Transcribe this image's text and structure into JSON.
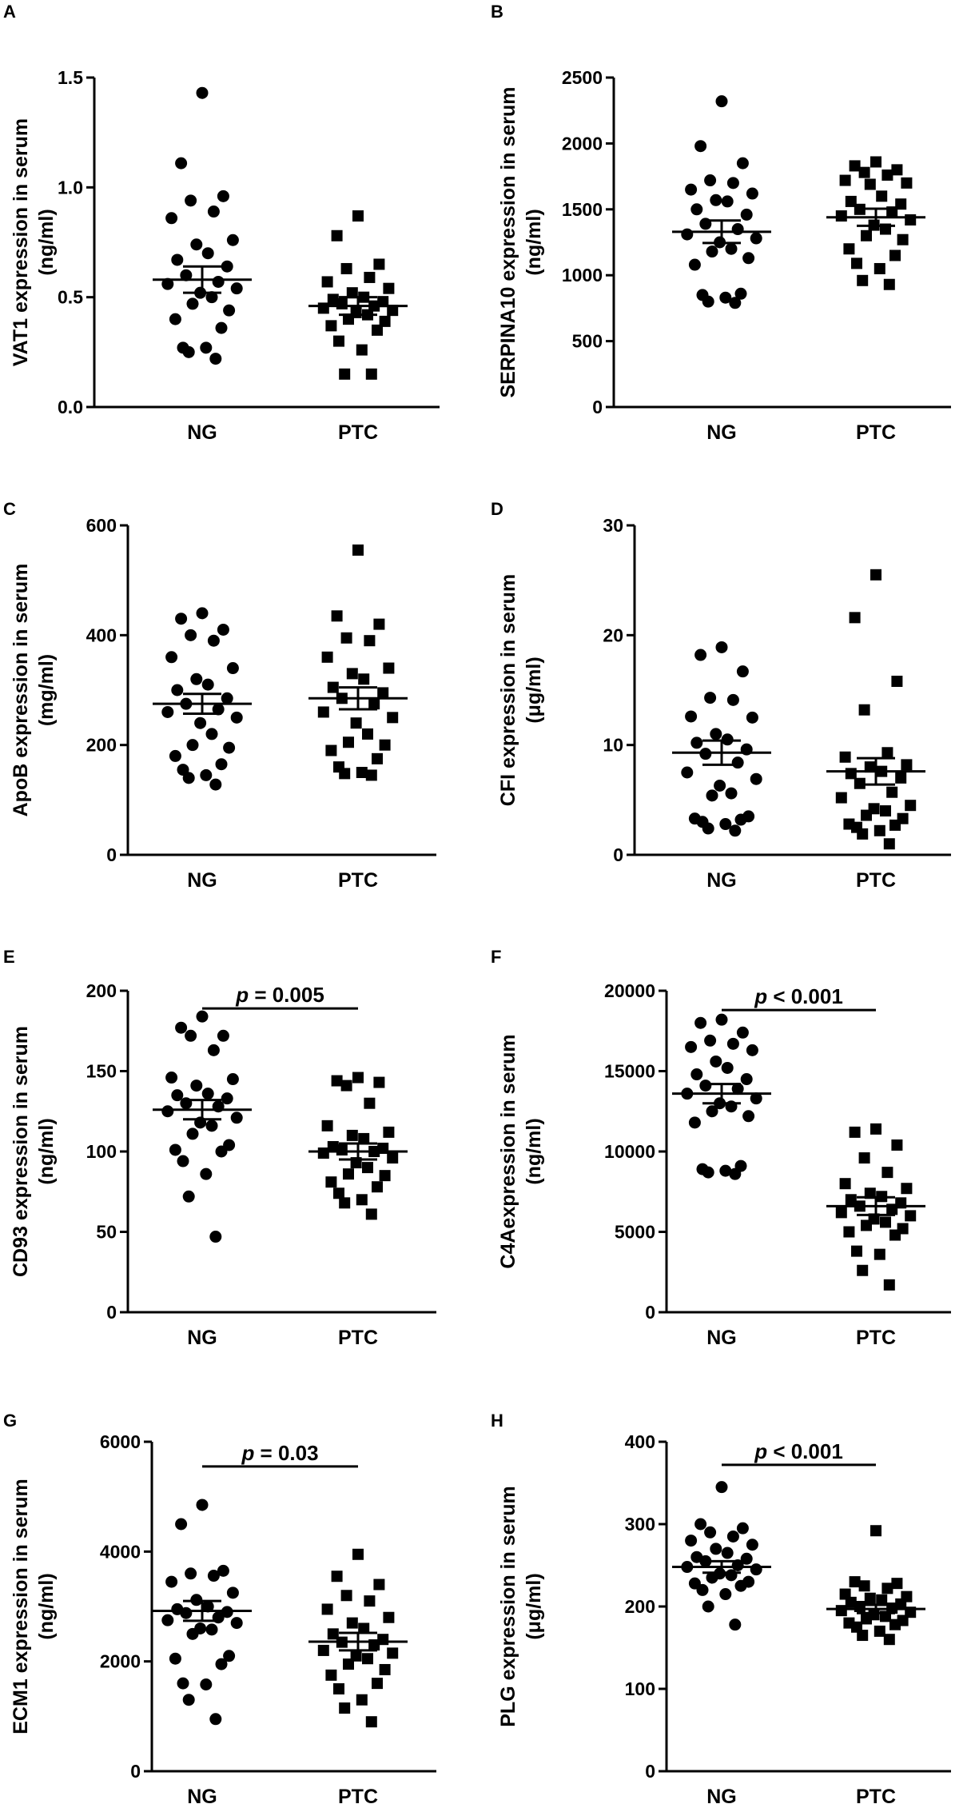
{
  "figure": {
    "colors": {
      "ink": "#000000",
      "background": "#ffffff"
    }
  },
  "chart_data": [
    {
      "panel": "A",
      "type": "scatter",
      "title": "",
      "ylabel_lines": [
        "VAT1 expression in serum",
        "(ng/ml)"
      ],
      "categories": [
        "NG",
        "PTC"
      ],
      "yticks": [
        0,
        0.5,
        1,
        1.5
      ],
      "ytick_labels": [
        "0.0",
        "0.5",
        "1.0",
        "1.5"
      ],
      "ylim": [
        0,
        1.5
      ],
      "series": [
        {
          "name": "NG",
          "marker": "circle",
          "mean": 0.58,
          "sem": 0.06,
          "values": [
            1.43,
            1.11,
            0.96,
            0.94,
            0.89,
            0.86,
            0.76,
            0.74,
            0.7,
            0.67,
            0.64,
            0.6,
            0.57,
            0.56,
            0.54,
            0.52,
            0.5,
            0.47,
            0.44,
            0.4,
            0.36,
            0.27,
            0.27,
            0.25,
            0.22
          ]
        },
        {
          "name": "PTC",
          "marker": "square",
          "mean": 0.46,
          "sem": 0.04,
          "values": [
            0.87,
            0.78,
            0.65,
            0.63,
            0.59,
            0.57,
            0.54,
            0.52,
            0.5,
            0.49,
            0.48,
            0.47,
            0.46,
            0.45,
            0.44,
            0.43,
            0.42,
            0.4,
            0.39,
            0.37,
            0.35,
            0.3,
            0.26,
            0.15,
            0.15
          ]
        }
      ]
    },
    {
      "panel": "B",
      "type": "scatter",
      "title": "",
      "ylabel_lines": [
        "SERPINA10 expression in serum",
        "(ng/ml)"
      ],
      "categories": [
        "NG",
        "PTC"
      ],
      "yticks": [
        0,
        500,
        1000,
        1500,
        2000,
        2500
      ],
      "ytick_labels": [
        "0",
        "500",
        "1000",
        "1500",
        "2000",
        "2500"
      ],
      "ylim": [
        0,
        2500
      ],
      "series": [
        {
          "name": "NG",
          "marker": "circle",
          "mean": 1330,
          "sem": 85,
          "values": [
            2320,
            1980,
            1850,
            1720,
            1700,
            1650,
            1620,
            1570,
            1560,
            1500,
            1460,
            1390,
            1350,
            1310,
            1280,
            1250,
            1200,
            1180,
            1130,
            1080,
            860,
            850,
            830,
            800,
            790
          ]
        },
        {
          "name": "PTC",
          "marker": "square",
          "mean": 1440,
          "sem": 65,
          "values": [
            1860,
            1830,
            1800,
            1780,
            1760,
            1720,
            1700,
            1690,
            1600,
            1560,
            1540,
            1500,
            1480,
            1450,
            1420,
            1380,
            1350,
            1300,
            1270,
            1200,
            1150,
            1090,
            1050,
            960,
            930
          ]
        }
      ]
    },
    {
      "panel": "C",
      "type": "scatter",
      "title": "",
      "ylabel_lines": [
        "ApoB expression in serum",
        "(mg/ml)"
      ],
      "categories": [
        "NG",
        "PTC"
      ],
      "yticks": [
        0,
        200,
        400,
        600
      ],
      "ytick_labels": [
        "0",
        "200",
        "400",
        "600"
      ],
      "ylim": [
        0,
        600
      ],
      "series": [
        {
          "name": "NG",
          "marker": "circle",
          "mean": 275,
          "sem": 18,
          "values": [
            440,
            430,
            410,
            400,
            390,
            360,
            340,
            320,
            310,
            300,
            285,
            275,
            265,
            260,
            250,
            240,
            220,
            200,
            195,
            180,
            165,
            155,
            145,
            140,
            128
          ]
        },
        {
          "name": "PTC",
          "marker": "square",
          "mean": 285,
          "sem": 20,
          "values": [
            555,
            435,
            420,
            395,
            390,
            360,
            340,
            330,
            320,
            305,
            295,
            285,
            275,
            260,
            250,
            240,
            220,
            205,
            200,
            190,
            175,
            160,
            150,
            148,
            145
          ]
        }
      ]
    },
    {
      "panel": "D",
      "type": "scatter",
      "title": "",
      "ylabel_lines": [
        "CFI expression in serum",
        "(μg/ml)"
      ],
      "categories": [
        "NG",
        "PTC"
      ],
      "yticks": [
        0,
        10,
        20,
        30
      ],
      "ytick_labels": [
        "0",
        "10",
        "20",
        "30"
      ],
      "ylim": [
        0,
        30
      ],
      "series": [
        {
          "name": "NG",
          "marker": "circle",
          "mean": 9.3,
          "sem": 1.1,
          "values": [
            18.9,
            18.2,
            16.7,
            14.3,
            14.1,
            12.6,
            12.5,
            11.0,
            10.5,
            10.2,
            9.6,
            9.2,
            8.4,
            7.5,
            6.9,
            6.3,
            5.6,
            5.4,
            3.5,
            3.3,
            3.2,
            3.0,
            2.8,
            2.4,
            2.2
          ]
        },
        {
          "name": "PTC",
          "marker": "square",
          "mean": 7.6,
          "sem": 1.2,
          "values": [
            25.5,
            21.6,
            15.8,
            13.2,
            9.3,
            8.9,
            8.2,
            8.0,
            7.6,
            7.4,
            7.0,
            6.5,
            5.7,
            5.2,
            4.5,
            4.2,
            4.0,
            3.6,
            3.3,
            2.8,
            2.7,
            2.5,
            2.2,
            1.9,
            1.0
          ]
        }
      ]
    },
    {
      "panel": "E",
      "type": "scatter",
      "title": "",
      "ylabel_lines": [
        "CD93 expression in serum",
        "(ng/ml)"
      ],
      "categories": [
        "NG",
        "PTC"
      ],
      "yticks": [
        0,
        50,
        100,
        150,
        200
      ],
      "ytick_labels": [
        "0",
        "50",
        "100",
        "150",
        "200"
      ],
      "ylim": [
        0,
        200
      ],
      "significance": {
        "label": "= 0.005",
        "p_symbol": "p",
        "bar_y": 189
      },
      "series": [
        {
          "name": "NG",
          "marker": "circle",
          "mean": 126,
          "sem": 6,
          "values": [
            184,
            177,
            172,
            172,
            163,
            146,
            145,
            141,
            136,
            135,
            133,
            130,
            128,
            125,
            121,
            118,
            116,
            111,
            104,
            101,
            100,
            94,
            86,
            72,
            47
          ]
        },
        {
          "name": "PTC",
          "marker": "square",
          "mean": 100,
          "sem": 5,
          "values": [
            146,
            144,
            143,
            141,
            130,
            116,
            112,
            110,
            108,
            103,
            102,
            101,
            100,
            99,
            96,
            93,
            90,
            86,
            85,
            81,
            78,
            74,
            70,
            68,
            61
          ]
        }
      ]
    },
    {
      "panel": "F",
      "type": "scatter",
      "title": "",
      "ylabel_lines": [
        "C4Aexpression in serum",
        "(ng/ml)"
      ],
      "categories": [
        "NG",
        "PTC"
      ],
      "yticks": [
        0,
        5000,
        10000,
        15000,
        20000
      ],
      "ytick_labels": [
        "0",
        "5000",
        "10000",
        "15000",
        "20000"
      ],
      "ylim": [
        0,
        20000
      ],
      "significance": {
        "label": "< 0.001",
        "p_symbol": "p",
        "bar_y": 18800
      },
      "series": [
        {
          "name": "NG",
          "marker": "circle",
          "mean": 13600,
          "sem": 600,
          "values": [
            18200,
            18000,
            17400,
            16900,
            16700,
            16500,
            16300,
            15600,
            15200,
            14800,
            14500,
            14100,
            13900,
            13600,
            13300,
            13000,
            12800,
            12500,
            12200,
            11800,
            9100,
            8900,
            8800,
            8700,
            8600
          ]
        },
        {
          "name": "PTC",
          "marker": "square",
          "mean": 6600,
          "sem": 550,
          "values": [
            11400,
            11200,
            10400,
            9600,
            8700,
            8000,
            7700,
            7400,
            7200,
            7000,
            6800,
            6600,
            6400,
            6200,
            6000,
            5800,
            5600,
            5400,
            5200,
            5000,
            4800,
            3800,
            3600,
            2600,
            1700
          ]
        }
      ]
    },
    {
      "panel": "G",
      "type": "scatter",
      "title": "",
      "ylabel_lines": [
        "ECM1 expression in serum",
        "(ng/ml)"
      ],
      "categories": [
        "NG",
        "PTC"
      ],
      "yticks": [
        0,
        2000,
        4000,
        6000
      ],
      "ytick_labels": [
        "0",
        "2000",
        "4000",
        "6000"
      ],
      "ylim": [
        0,
        6000
      ],
      "significance": {
        "label": "= 0.03",
        "p_symbol": "p",
        "bar_y": 5550
      },
      "series": [
        {
          "name": "NG",
          "marker": "circle",
          "mean": 2920,
          "sem": 180,
          "values": [
            4850,
            4500,
            3650,
            3600,
            3560,
            3450,
            3250,
            3120,
            3000,
            2950,
            2900,
            2880,
            2800,
            2750,
            2700,
            2600,
            2580,
            2500,
            2100,
            2050,
            1950,
            1600,
            1580,
            1300,
            950
          ]
        },
        {
          "name": "PTC",
          "marker": "square",
          "mean": 2360,
          "sem": 160,
          "values": [
            3950,
            3550,
            3400,
            3200,
            3100,
            2950,
            2800,
            2700,
            2600,
            2500,
            2400,
            2350,
            2300,
            2200,
            2150,
            2100,
            2050,
            1950,
            1850,
            1750,
            1600,
            1500,
            1300,
            1150,
            900
          ]
        }
      ]
    },
    {
      "panel": "H",
      "type": "scatter",
      "title": "",
      "ylabel_lines": [
        "PLG expression in serum",
        "(μg/ml)"
      ],
      "categories": [
        "NG",
        "PTC"
      ],
      "yticks": [
        0,
        100,
        200,
        300,
        400
      ],
      "ytick_labels": [
        "0",
        "100",
        "200",
        "300",
        "400"
      ],
      "ylim": [
        0,
        400
      ],
      "significance": {
        "label": "< 0.001",
        "p_symbol": "p",
        "bar_y": 372
      },
      "series": [
        {
          "name": "NG",
          "marker": "circle",
          "mean": 248,
          "sem": 7,
          "values": [
            345,
            300,
            295,
            290,
            285,
            280,
            275,
            270,
            265,
            260,
            258,
            255,
            250,
            248,
            245,
            240,
            238,
            235,
            230,
            228,
            225,
            220,
            215,
            200,
            178
          ]
        },
        {
          "name": "PTC",
          "marker": "square",
          "mean": 197,
          "sem": 5,
          "values": [
            292,
            230,
            228,
            225,
            222,
            215,
            212,
            210,
            208,
            205,
            203,
            200,
            198,
            195,
            193,
            190,
            188,
            185,
            183,
            180,
            178,
            175,
            170,
            165,
            160
          ]
        }
      ]
    }
  ]
}
